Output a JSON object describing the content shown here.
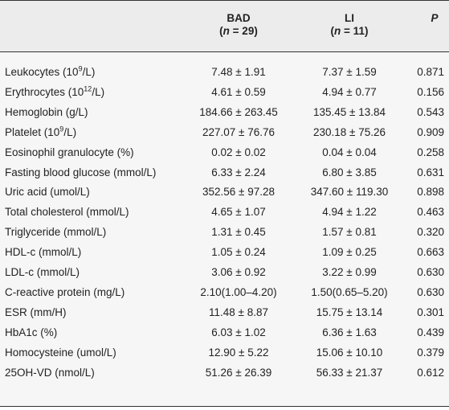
{
  "table": {
    "columns": [
      {
        "name": "BAD",
        "n": [
          "(",
          "n",
          " = 29)"
        ]
      },
      {
        "name": "LI",
        "n": [
          "(",
          "n",
          " = 11)"
        ]
      },
      {
        "name": "P"
      }
    ],
    "rows": [
      {
        "label": [
          "Leukocytes (10",
          "9",
          "/L)"
        ],
        "bad": "7.48 ± 1.91",
        "li": "7.37 ± 1.59",
        "p": "0.871"
      },
      {
        "label": [
          "Erythrocytes (10",
          "12",
          "/L)"
        ],
        "bad": "4.61 ± 0.59",
        "li": "4.94 ± 0.77",
        "p": "0.156"
      },
      {
        "label": [
          "Hemoglobin (g/L)"
        ],
        "bad": "184.66 ± 263.45",
        "li": "135.45 ± 13.84",
        "p": "0.543"
      },
      {
        "label": [
          "Platelet (10",
          "9",
          "/L)"
        ],
        "bad": "227.07 ± 76.76",
        "li": "230.18 ± 75.26",
        "p": "0.909"
      },
      {
        "label": [
          "Eosinophil granulocyte (%)"
        ],
        "bad": "0.02 ± 0.02",
        "li": "0.04 ± 0.04",
        "p": "0.258"
      },
      {
        "label": [
          "Fasting blood glucose (mmol/L)"
        ],
        "bad": "6.33 ± 2.24",
        "li": "6.80 ± 3.85",
        "p": "0.631"
      },
      {
        "label": [
          "Uric acid (umol/L)"
        ],
        "bad": "352.56 ± 97.28",
        "li": "347.60 ± 119.30",
        "p": "0.898"
      },
      {
        "label": [
          "Total cholesterol (mmol/L)"
        ],
        "bad": "4.65 ± 1.07",
        "li": "4.94 ± 1.22",
        "p": "0.463"
      },
      {
        "label": [
          "Triglyceride (mmol/L)"
        ],
        "bad": "1.31 ± 0.45",
        "li": "1.57 ± 0.81",
        "p": "0.320"
      },
      {
        "label": [
          "HDL-c (mmol/L)"
        ],
        "bad": "1.05 ± 0.24",
        "li": "1.09 ± 0.25",
        "p": "0.663"
      },
      {
        "label": [
          "LDL-c (mmol/L)"
        ],
        "bad": "3.06 ± 0.92",
        "li": "3.22 ± 0.99",
        "p": "0.630"
      },
      {
        "label": [
          "C-reactive protein (mg/L)"
        ],
        "bad": "2.10(1.00–4.20)",
        "li": "1.50(0.65–5.20)",
        "p": "0.630"
      },
      {
        "label": [
          "ESR (mm/H)"
        ],
        "bad": "11.48 ± 8.87",
        "li": "15.75 ± 13.14",
        "p": "0.301"
      },
      {
        "label": [
          "HbA1c (%)"
        ],
        "bad": "6.03 ± 1.02",
        "li": "6.36 ± 1.63",
        "p": "0.439"
      },
      {
        "label": [
          "Homocysteine (umol/L)"
        ],
        "bad": "12.90 ± 5.22",
        "li": "15.06 ± 10.10",
        "p": "0.379"
      },
      {
        "label": [
          "25OH-VD (nmol/L)"
        ],
        "bad": "51.26 ± 26.39",
        "li": "56.33 ± 21.37",
        "p": "0.612"
      }
    ]
  }
}
